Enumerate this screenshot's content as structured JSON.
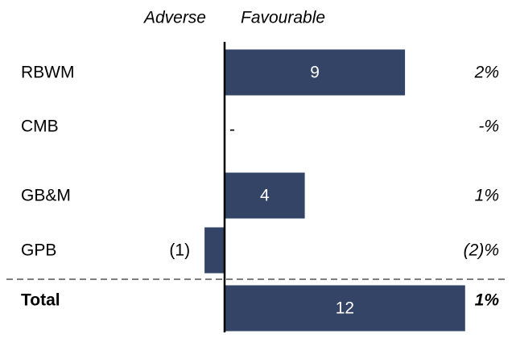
{
  "chart_data": {
    "type": "bar",
    "orientation": "horizontal",
    "header_labels": {
      "adverse": "Adverse",
      "favourable": "Favourable"
    },
    "categories": [
      "RBWM",
      "CMB",
      "GB&M",
      "GPB"
    ],
    "values": [
      9,
      0,
      4,
      -1
    ],
    "value_labels": [
      "9",
      "-",
      "4",
      "(1)"
    ],
    "percent_labels": [
      "2%",
      "-%",
      "1%",
      "(2)%"
    ],
    "total": {
      "label": "Total",
      "value": 12,
      "value_label": "12",
      "percent_label": "1%"
    },
    "colors": {
      "bar": "#334466",
      "axis": "#000000",
      "separator": "#555555"
    }
  }
}
